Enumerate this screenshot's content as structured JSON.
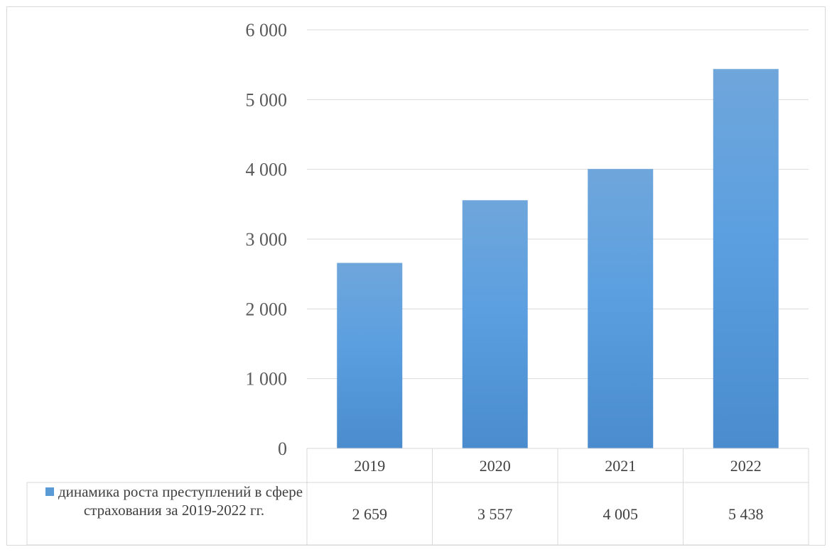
{
  "chart_data": {
    "type": "bar",
    "categories": [
      "2019",
      "2020",
      "2021",
      "2022"
    ],
    "series": [
      {
        "name": "динамика роста преступлений в сфере страхования за 2019-2022 гг.",
        "values": [
          2659,
          3557,
          4005,
          5438
        ],
        "value_labels": [
          "2 659",
          "3 557",
          "4 005",
          "5 438"
        ]
      }
    ],
    "ylim": [
      0,
      6000
    ],
    "y_ticks": [
      0,
      1000,
      2000,
      3000,
      4000,
      5000,
      6000
    ],
    "y_tick_labels": [
      "0",
      "1 000",
      "2 000",
      "3 000",
      "4 000",
      "5 000",
      "6 000"
    ],
    "grid": true,
    "legend": "data-table-left",
    "colors": {
      "bar": "#5b9bd5",
      "grid": "#d9d9d9"
    }
  }
}
